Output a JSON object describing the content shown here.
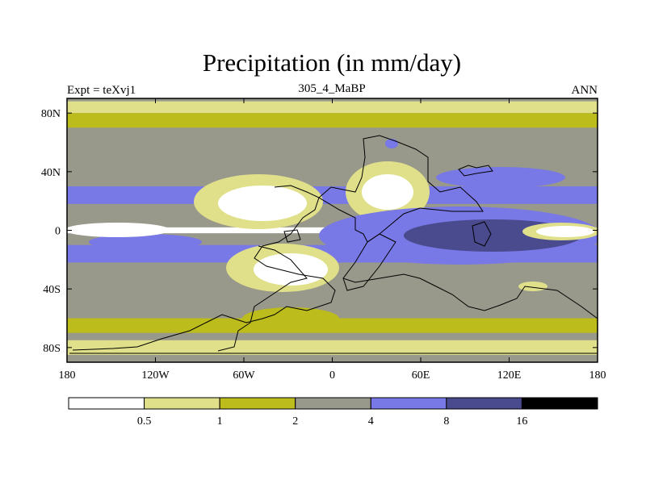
{
  "chart_data": {
    "type": "heatmap",
    "title": "Precipitation (in mm/day)",
    "subtitle_left": "Expt = teXvj1",
    "subtitle_center": "305_4_MaBP",
    "subtitle_right": "ANN",
    "x_axis": {
      "range": [
        -180,
        180
      ],
      "ticks": [
        -180,
        -120,
        -60,
        0,
        60,
        120,
        180
      ],
      "tick_labels": [
        "180",
        "120W",
        "60W",
        "0",
        "60E",
        "120E",
        "180"
      ]
    },
    "y_axis": {
      "range": [
        -90,
        90
      ],
      "ticks": [
        80,
        40,
        0,
        -40,
        -80
      ],
      "tick_labels": [
        "80N",
        "40N",
        "0",
        "40S",
        "80S"
      ]
    },
    "colorbar": {
      "levels": [
        0.5,
        1,
        2,
        4,
        8,
        16
      ],
      "level_labels": [
        "0.5",
        "1",
        "2",
        "4",
        "8",
        "16"
      ],
      "colors": [
        "#ffffff",
        "#e0e08a",
        "#bcbc1c",
        "#99998b",
        "#7878e6",
        "#4a4a8e",
        "#000000"
      ]
    },
    "precip_zones": [
      {
        "class": 1,
        "lat": [
          80,
          88
        ]
      },
      {
        "class": 2,
        "lat": [
          70,
          80
        ]
      },
      {
        "class": 3,
        "lat": [
          34,
          70
        ]
      },
      {
        "class": 4,
        "lat": [
          18,
          30
        ]
      },
      {
        "class": 0,
        "lat": [
          -2,
          2
        ]
      },
      {
        "class": 4,
        "lat": [
          -22,
          -10
        ]
      },
      {
        "class": 3,
        "lat": [
          -55,
          -25
        ]
      },
      {
        "class": 2,
        "lat": [
          -70,
          -60
        ]
      },
      {
        "class": 1,
        "lat": [
          -85,
          -75
        ]
      }
    ]
  }
}
